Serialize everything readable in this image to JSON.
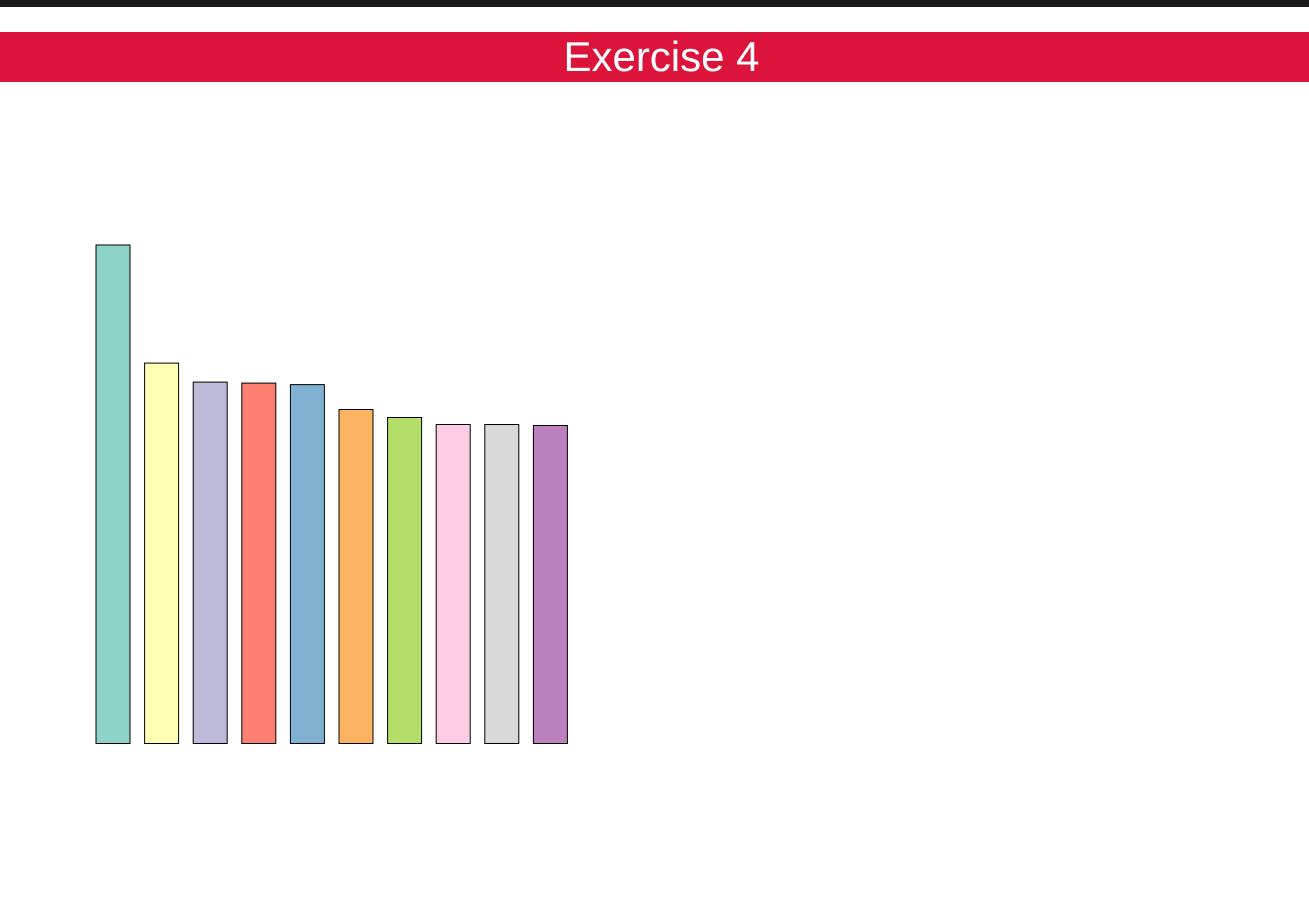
{
  "header": {
    "title": "Exercise 4",
    "banner_color": "#DC143C",
    "text_color": "#FFFFFF"
  },
  "chart_data": {
    "type": "bar",
    "title": "",
    "xlabel": "",
    "ylabel": "",
    "axes_visible": false,
    "grid": false,
    "ylim": [
      0,
      100
    ],
    "categories": [
      "",
      "",
      "",
      "",
      "",
      "",
      "",
      "",
      "",
      ""
    ],
    "values": [
      100,
      76.3,
      72.5,
      72.3,
      72.0,
      67.0,
      65.4,
      64.0,
      64.0,
      63.8
    ],
    "colors": [
      "#8DD3C7",
      "#FFFFB3",
      "#BEBADA",
      "#FB8072",
      "#80B1D3",
      "#FDB462",
      "#B3DE69",
      "#FCCDE5",
      "#D9D9D9",
      "#BC80BD"
    ],
    "edge_color": "#000000"
  }
}
